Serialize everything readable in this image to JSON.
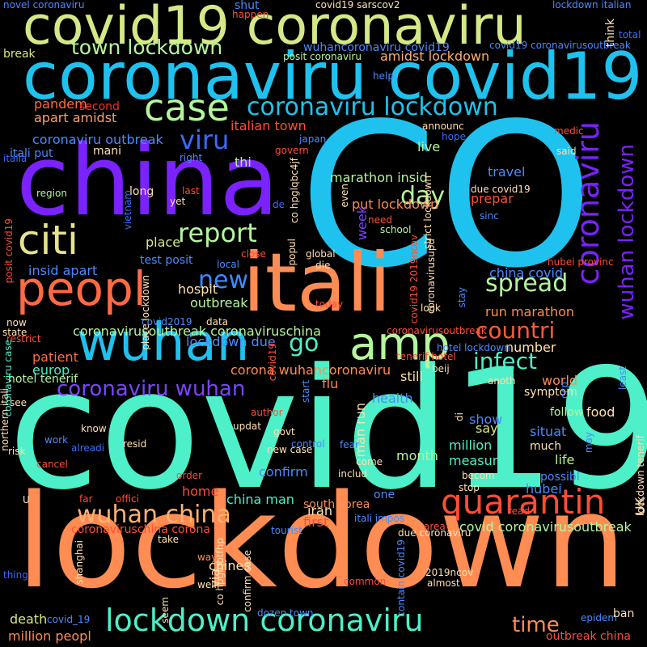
{
  "palette": {
    "purple": "#7a22ff",
    "cyan": "#1fc2ee",
    "teal": "#4df0c8",
    "green": "#b5f59c",
    "orange": "#ff8c52",
    "red": "#f23025",
    "blue": "#3a6cff",
    "lime": "#d4e887",
    "lightblue": "#5fb0ff",
    "pink": "#ff5b6b"
  },
  "words": [
    {
      "text": "CO",
      "color": "#1fc2ee"
    },
    {
      "text": "covid19",
      "color": "#4df0c8"
    },
    {
      "text": "lockdown",
      "color": "#ff8c52"
    },
    {
      "text": "china",
      "color": "#7a22ff"
    },
    {
      "text": "itali",
      "color": "#ff8c52"
    },
    {
      "text": "coronaviru covid19",
      "color": "#1fc2ee"
    },
    {
      "text": "covid19 coronaviru",
      "color": "#d4e887"
    },
    {
      "text": "wuhan",
      "color": "#1fc2ee"
    },
    {
      "text": "peopl",
      "color": "#ff6a45"
    },
    {
      "text": "amp",
      "color": "#b5f59c"
    },
    {
      "text": "citi",
      "color": "#e7e38a"
    },
    {
      "text": "case",
      "color": "#b5f59c"
    },
    {
      "text": "quarantin",
      "color": "#ff4d36"
    },
    {
      "text": "coronaviru",
      "color": "#7a22ff"
    },
    {
      "text": "lockdown coronaviru",
      "color": "#4df0c8"
    },
    {
      "text": "coronaviru lockdown",
      "color": "#1fc2ee"
    },
    {
      "text": "wuhan china",
      "color": "#ffb070"
    },
    {
      "text": "town lockdown",
      "color": "#b5f59c"
    },
    {
      "text": "report",
      "color": "#b5f59c"
    },
    {
      "text": "viru",
      "color": "#3a6cff"
    },
    {
      "text": "day",
      "color": "#b5f59c"
    },
    {
      "text": "spread",
      "color": "#b5f59c"
    },
    {
      "text": "new",
      "color": "#3a8cff"
    },
    {
      "text": "countri",
      "color": "#ff5b35"
    },
    {
      "text": "infect",
      "color": "#4df0c8"
    },
    {
      "text": "go",
      "color": "#4df0c8"
    },
    {
      "text": "coronaviru wuhan",
      "color": "#7a44ff"
    },
    {
      "text": "wuhan lockdown",
      "color": "#7a22ff"
    },
    {
      "text": "time",
      "color": "#ff8c52"
    },
    {
      "text": "italian town",
      "color": "#ff4d36"
    },
    {
      "text": "put lockdown",
      "color": "#ff8c52"
    },
    {
      "text": "marathon insid",
      "color": "#b5f59c"
    },
    {
      "text": "apart amidst",
      "color": "#ff9f6a"
    },
    {
      "text": "amidst lockdown",
      "color": "#ffb070"
    },
    {
      "text": "coronaviru outbreak",
      "color": "#4a8aff"
    },
    {
      "text": "pandem",
      "color": "#ff6a45"
    },
    {
      "text": "second",
      "color": "#f23025"
    },
    {
      "text": "break",
      "color": "#d4e887"
    },
    {
      "text": "mani",
      "color": "#ffe0b0"
    },
    {
      "text": "itali put",
      "color": "#4a8aff"
    },
    {
      "text": "italia",
      "color": "#3a6cff"
    },
    {
      "text": "thi",
      "color": "#b5f59c"
    },
    {
      "text": "live",
      "color": "#b5f59c"
    },
    {
      "text": "travel",
      "color": "#4a8aff"
    },
    {
      "text": "prepar",
      "color": "#ff4d36"
    },
    {
      "text": "week",
      "color": "#7a44ff"
    },
    {
      "text": "place",
      "color": "#d4e887"
    },
    {
      "text": "test posit",
      "color": "#4a8aff"
    },
    {
      "text": "insid apart",
      "color": "#4a8aff"
    },
    {
      "text": "hospit",
      "color": "#ffe0b0"
    },
    {
      "text": "outbreak",
      "color": "#b5f59c"
    },
    {
      "text": "china covid",
      "color": "#4a8aff"
    },
    {
      "text": "run marathon",
      "color": "#ff8c52"
    },
    {
      "text": "coronavirusoutbreak coronaviruschina",
      "color": "#b5f59c"
    },
    {
      "text": "lockdown due",
      "color": "#4a8aff"
    },
    {
      "text": "patient",
      "color": "#ff6a45"
    },
    {
      "text": "europ",
      "color": "#4df0c8"
    },
    {
      "text": "hotel tenerif",
      "color": "#b5f59c"
    },
    {
      "text": "corona wuhancoronaviru",
      "color": "#ff8c52"
    },
    {
      "text": "number",
      "color": "#ffe0b0"
    },
    {
      "text": "world",
      "color": "#ff8c52"
    },
    {
      "text": "flu",
      "color": "#ff8c52"
    },
    {
      "text": "man run",
      "color": "#ffe0b0"
    },
    {
      "text": "still",
      "color": "#ffe0b0"
    },
    {
      "text": "health",
      "color": "#4a8aff"
    },
    {
      "text": "symptom",
      "color": "#ffe0b0"
    },
    {
      "text": "follow",
      "color": "#b5f59c"
    },
    {
      "text": "food",
      "color": "#ffe0b0"
    },
    {
      "text": "show",
      "color": "#4a8aff"
    },
    {
      "text": "situat",
      "color": "#4a8aff"
    },
    {
      "text": "say",
      "color": "#d4e887"
    },
    {
      "text": "million",
      "color": "#4df0c8"
    },
    {
      "text": "month",
      "color": "#b5f59c"
    },
    {
      "text": "measur",
      "color": "#4df0c8"
    },
    {
      "text": "life",
      "color": "#b5f59c"
    },
    {
      "text": "much",
      "color": "#ffe0b0"
    },
    {
      "text": "confirm",
      "color": "#4a8aff"
    },
    {
      "text": "hubei",
      "color": "#4a8aff"
    },
    {
      "text": "home",
      "color": "#ff4d36"
    },
    {
      "text": "china man",
      "color": "#4df0c8"
    },
    {
      "text": "one",
      "color": "#4a8aff"
    },
    {
      "text": "iran",
      "color": "#ffe0b0"
    },
    {
      "text": "first",
      "color": "#ff4d36"
    },
    {
      "text": "coronaviruschina corona",
      "color": "#ff4d36"
    },
    {
      "text": "covid coronavirusoutbreak",
      "color": "#b5f59c"
    },
    {
      "text": "south korea",
      "color": "#ff8c52"
    },
    {
      "text": "chines",
      "color": "#ffe0b0"
    },
    {
      "text": "via",
      "color": "#ffe0b0"
    },
    {
      "text": "death",
      "color": "#d4e887"
    },
    {
      "text": "million peopl",
      "color": "#ff8c52"
    },
    {
      "text": "covid_19",
      "color": "#4a8aff"
    },
    {
      "text": "dozen town",
      "color": "#4a8aff"
    },
    {
      "text": "epidem",
      "color": "#4a8aff"
    },
    {
      "text": "ban",
      "color": "#ffe0b0"
    },
    {
      "text": "outbreak china",
      "color": "#ff4d36"
    },
    {
      "text": "novel coronaviru",
      "color": "#4a8aff"
    },
    {
      "text": "covid19 sarscov2",
      "color": "#ffe0b0"
    },
    {
      "text": "lockdown italian",
      "color": "#4a8aff"
    },
    {
      "text": "total",
      "color": "#3a6cff"
    },
    {
      "text": "wuhancoronaviru covid19",
      "color": "#4a8aff"
    },
    {
      "text": "covid19 coronavirusoutbreak",
      "color": "#4a8aff"
    },
    {
      "text": "posit coronaviru",
      "color": "#b5f59c"
    },
    {
      "text": "think",
      "color": "#ffe0b0"
    },
    {
      "text": "help",
      "color": "#4a8aff"
    },
    {
      "text": "announc",
      "color": "#ffe0b0"
    },
    {
      "text": "medic",
      "color": "#ff4d36"
    },
    {
      "text": "hope",
      "color": "#3a6cff"
    },
    {
      "text": "said",
      "color": "#ffe0b0"
    },
    {
      "text": "japan",
      "color": "#4a8aff"
    },
    {
      "text": "govern",
      "color": "#ff4d36"
    },
    {
      "text": "right",
      "color": "#4a8aff"
    },
    {
      "text": "region",
      "color": "#b5f59c"
    },
    {
      "text": "long",
      "color": "#ffe0b0"
    },
    {
      "text": "last",
      "color": "#ff4d36"
    },
    {
      "text": "yet",
      "color": "#ffe0b0"
    },
    {
      "text": "de",
      "color": "#3a6cff"
    },
    {
      "text": "even",
      "color": "#ffe0b0"
    },
    {
      "text": "due covid19",
      "color": "#ffe0b0"
    },
    {
      "text": "sinc",
      "color": "#4a8aff"
    },
    {
      "text": "need",
      "color": "#ff4d36"
    },
    {
      "text": "school",
      "color": "#b5f59c"
    },
    {
      "text": "close",
      "color": "#ff4d36"
    },
    {
      "text": "global",
      "color": "#ffe0b0"
    },
    {
      "text": "local",
      "color": "#4a8aff"
    },
    {
      "text": "die",
      "color": "#ffe0b0"
    },
    {
      "text": "hubei provinc",
      "color": "#ff4d36"
    },
    {
      "text": "today",
      "color": "#ff4d36"
    },
    {
      "text": "look",
      "color": "#ffe0b0"
    },
    {
      "text": "now",
      "color": "#ffe0b0"
    },
    {
      "text": "covid2019",
      "color": "#4a8aff"
    },
    {
      "text": "data",
      "color": "#ffe0b0"
    },
    {
      "text": "state",
      "color": "#ffe0b0"
    },
    {
      "text": "restrict",
      "color": "#ff4d36"
    },
    {
      "text": "coronavirusoutbreak",
      "color": "#ff4d36"
    },
    {
      "text": "hotel lockdown",
      "color": "#4a8aff"
    },
    {
      "text": "tenerif hotel",
      "color": "#ff4d36"
    },
    {
      "text": "beij",
      "color": "#ffe0b0"
    },
    {
      "text": "anoth",
      "color": "#ffe0b0"
    },
    {
      "text": "see",
      "color": "#ffe0b0"
    },
    {
      "text": "author",
      "color": "#ff4d36"
    },
    {
      "text": "know",
      "color": "#ffe0b0"
    },
    {
      "text": "updat",
      "color": "#ffe0b0"
    },
    {
      "text": "govt",
      "color": "#ffe0b0"
    },
    {
      "text": "work",
      "color": "#4a8aff"
    },
    {
      "text": "risk",
      "color": "#ffe0b0"
    },
    {
      "text": "alreadi",
      "color": "#3a6cff"
    },
    {
      "text": "resid",
      "color": "#ffe0b0"
    },
    {
      "text": "control",
      "color": "#4a8aff"
    },
    {
      "text": "fear",
      "color": "#4a8aff"
    },
    {
      "text": "cancel",
      "color": "#ff4d36"
    },
    {
      "text": "new case",
      "color": "#ffe0b0"
    },
    {
      "text": "come",
      "color": "#ffe0b0"
    },
    {
      "text": "order",
      "color": "#ff4d36"
    },
    {
      "text": "includ",
      "color": "#ffe0b0"
    },
    {
      "text": "becom",
      "color": "#ffe0b0"
    },
    {
      "text": "stop",
      "color": "#ffe0b0"
    },
    {
      "text": "possibl",
      "color": "#4a8aff"
    },
    {
      "text": "U",
      "color": "#ffe0b0"
    },
    {
      "text": "far",
      "color": "#ff4d36"
    },
    {
      "text": "offici",
      "color": "#ff4d36"
    },
    {
      "text": "itali impos",
      "color": "#4a8aff"
    },
    {
      "text": "read",
      "color": "#ff4d36"
    },
    {
      "text": "tourist",
      "color": "#4a8aff"
    },
    {
      "text": "due coronaviru",
      "color": "#ffe0b0"
    },
    {
      "text": "area",
      "color": "#ff4d36"
    },
    {
      "text": "take",
      "color": "#ffe0b0"
    },
    {
      "text": "way",
      "color": "#ff8c52"
    },
    {
      "text": "thing",
      "color": "#3a6cff"
    },
    {
      "text": "well",
      "color": "#ffe0b0"
    },
    {
      "text": "2019ncov",
      "color": "#ffe0b0"
    },
    {
      "text": "almost",
      "color": "#ffe0b0"
    },
    {
      "text": "common",
      "color": "#ff4d36"
    },
    {
      "text": "shut",
      "color": "#4a8aff"
    },
    {
      "text": "happen",
      "color": "#ff4d36"
    },
    {
      "text": "may",
      "color": "#4a8aff"
    },
    {
      "text": "co hpglqbc4jf",
      "color": "#ffe0b0"
    },
    {
      "text": "strict lockdown",
      "color": "#ffe0b0"
    },
    {
      "text": "coronavirusupd",
      "color": "#ffe0b0"
    },
    {
      "text": "covid19 2019ncov",
      "color": "#ff4d36"
    },
    {
      "text": "northern itali",
      "color": "#ffe0b0"
    },
    {
      "text": "coronaviru case",
      "color": "#4df0c8"
    },
    {
      "text": "posit covid19",
      "color": "#ff4d36"
    },
    {
      "text": "vietnam",
      "color": "#3a6cff"
    },
    {
      "text": "place lockdown",
      "color": "#ffe0b0"
    },
    {
      "text": "popul",
      "color": "#ffe0b0"
    },
    {
      "text": "covid19",
      "color": "#ff4d36"
    },
    {
      "text": "start",
      "color": "#4a8aff"
    },
    {
      "text": "stay",
      "color": "#4a8aff"
    },
    {
      "text": "di",
      "color": "#ffe0b0"
    },
    {
      "text": "least",
      "color": "#4a8aff"
    },
    {
      "text": "ccp",
      "color": "#4a8aff"
    },
    {
      "text": "lockdown tenerif",
      "color": "#ffe0b0"
    },
    {
      "text": "contain covid19",
      "color": "#4a8aff"
    },
    {
      "text": "co hpglqbtfhp",
      "color": "#ffe0b0"
    },
    {
      "text": "shanghai",
      "color": "#ffe0b0"
    },
    {
      "text": "confirm case",
      "color": "#ffe0b0"
    },
    {
      "text": "seem",
      "color": "#ffe0b0"
    },
    {
      "text": "UK",
      "color": "#ffe0b0"
    },
    {
      "text": "citi lockdown",
      "color": "#ff4d36"
    }
  ]
}
